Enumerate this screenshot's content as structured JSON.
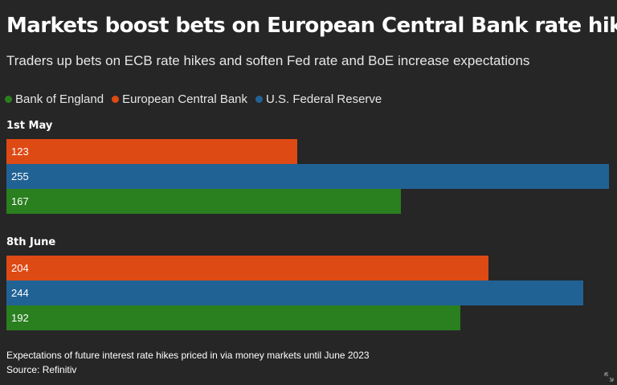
{
  "header": {
    "title": "Markets boost bets on European Central Bank rate hikes",
    "subtitle": "Traders up bets on ECB rate hikes and soften Fed rate and BoE increase expectations"
  },
  "legend": [
    {
      "label": "Bank of England",
      "color": "#2a7f1e"
    },
    {
      "label": "European Central Bank",
      "color": "#de4a14"
    },
    {
      "label": "U.S. Federal Reserve",
      "color": "#216295"
    }
  ],
  "chart_data": {
    "type": "bar",
    "orientation": "horizontal",
    "title": "Markets boost bets on European Central Bank rate hikes",
    "subtitle": "Traders up bets on ECB rate hikes and soften Fed rate and BoE increase expectations",
    "categories": [
      "1st May",
      "8th June"
    ],
    "series": [
      {
        "name": "European Central Bank",
        "color": "#de4a14",
        "values": [
          123,
          204
        ]
      },
      {
        "name": "U.S. Federal Reserve",
        "color": "#216295",
        "values": [
          255,
          244
        ]
      },
      {
        "name": "Bank of England",
        "color": "#2a7f1e",
        "values": [
          167,
          192
        ]
      }
    ],
    "xlim": [
      0,
      255
    ],
    "grid": false,
    "legend_position": "top-left"
  },
  "footer": {
    "note": "Expectations of future interest rate hikes priced in via money markets until June 2023",
    "source": "Source: Refinitiv"
  },
  "icons": {
    "expand": "expand-icon"
  }
}
